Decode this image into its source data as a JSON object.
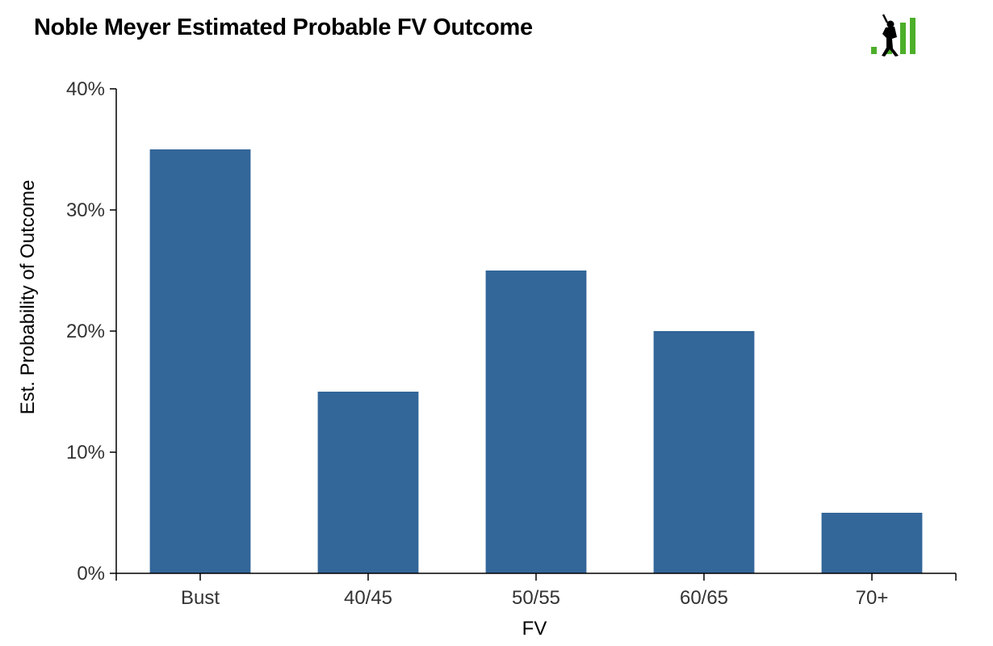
{
  "chart_data": {
    "type": "bar",
    "title": "Noble Meyer Estimated Probable FV Outcome",
    "xlabel": "FV",
    "ylabel": "Est. Probability of Outcome",
    "categories": [
      "Bust",
      "40/45",
      "50/55",
      "60/65",
      "70+"
    ],
    "values": [
      35,
      15,
      25,
      20,
      5
    ],
    "ylim": [
      0,
      40
    ],
    "yticks": [
      0,
      10,
      20,
      30,
      40
    ],
    "ytick_labels": [
      "0%",
      "10%",
      "20%",
      "30%",
      "40%"
    ],
    "grid": false,
    "legend": "none",
    "bar_color": "#336699"
  },
  "colors": {
    "logo_green": "#4caf2a",
    "logo_figure": "#000000"
  },
  "logo": {
    "icon": "batter-silhouette-bar-chart-icon"
  }
}
